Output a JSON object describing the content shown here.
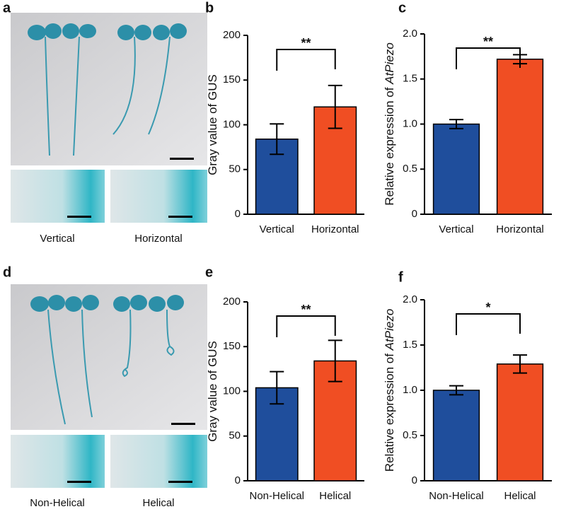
{
  "panel_labels": [
    "a",
    "b",
    "c",
    "d",
    "e",
    "f"
  ],
  "image_captions": [
    [
      "Vertical",
      "Horizontal"
    ],
    [
      "Non-Helical",
      "Helical"
    ]
  ],
  "chart_data": [
    {
      "type": "bar",
      "y_label": "Gray value of GUS",
      "categories": [
        "Vertical",
        "Horizontal"
      ],
      "values": [
        84,
        120
      ],
      "errors": [
        17,
        24
      ],
      "colors": [
        "#1f4e9c",
        "#f04e23"
      ],
      "ylim": [
        0,
        200
      ],
      "yticks": [
        0,
        50,
        100,
        150,
        200
      ],
      "significance": "**"
    },
    {
      "type": "bar",
      "y_label": "Relative expression of ",
      "y_label_italic": "AtPiezo",
      "categories": [
        "Vertical",
        "Horizontal"
      ],
      "values": [
        1.0,
        1.72
      ],
      "errors": [
        0.05,
        0.05
      ],
      "colors": [
        "#1f4e9c",
        "#f04e23"
      ],
      "ylim": [
        0,
        2.0
      ],
      "yticks": [
        0,
        0.5,
        {
          "value": 1.0,
          "label": "1.0"
        },
        1.5,
        {
          "value": 2.0,
          "label": "2.0"
        }
      ],
      "significance": "**"
    },
    {
      "type": "bar",
      "y_label": "Gray value of GUS",
      "categories": [
        "Non-Helical",
        "Helical"
      ],
      "values": [
        104,
        134
      ],
      "errors": [
        18,
        23
      ],
      "colors": [
        "#1f4e9c",
        "#f04e23"
      ],
      "ylim": [
        0,
        200
      ],
      "yticks": [
        0,
        50,
        100,
        150,
        200
      ],
      "significance": "**"
    },
    {
      "type": "bar",
      "y_label": "Relative expression of ",
      "y_label_italic": "AtPiezo",
      "categories": [
        "Non-Helical",
        "Helical"
      ],
      "values": [
        1.0,
        1.29
      ],
      "errors": [
        0.05,
        0.1
      ],
      "colors": [
        "#1f4e9c",
        "#f04e23"
      ],
      "ylim": [
        0,
        2.0
      ],
      "yticks": [
        0,
        0.5,
        {
          "value": 1.0,
          "label": "1.0"
        },
        1.5,
        {
          "value": 2.0,
          "label": "2.0"
        }
      ],
      "significance": "*"
    }
  ]
}
